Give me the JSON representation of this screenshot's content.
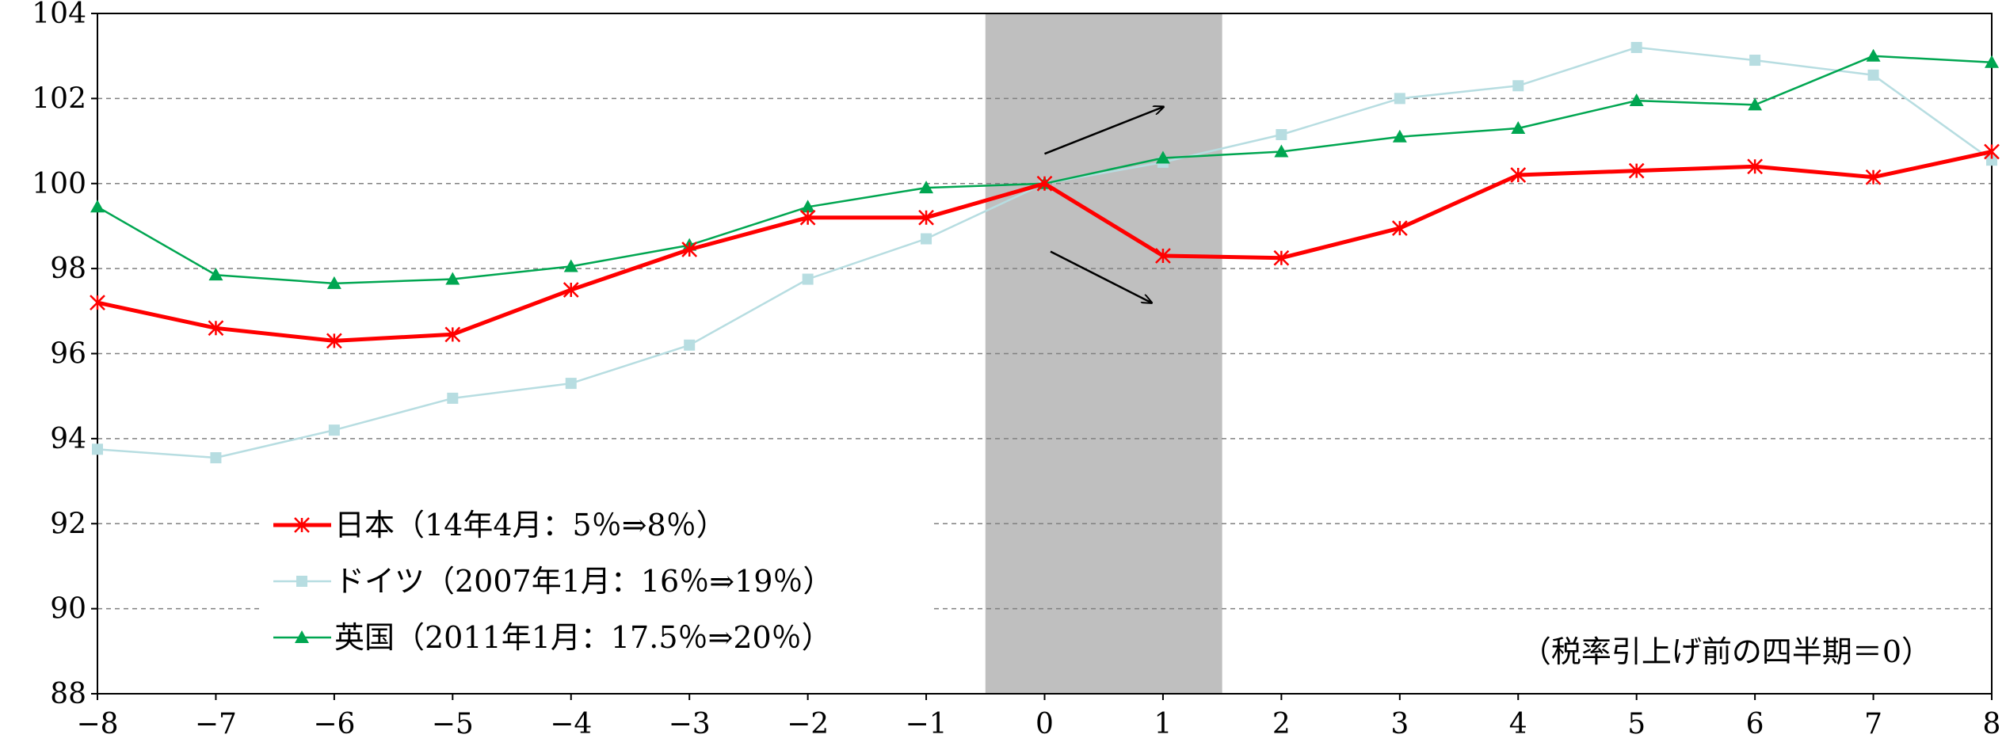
{
  "chart_data": {
    "type": "line",
    "title": "",
    "xlabel": "",
    "ylabel": "",
    "x": [
      -8,
      -7,
      -6,
      -5,
      -4,
      -3,
      -2,
      -1,
      0,
      1,
      2,
      3,
      4,
      5,
      6,
      7,
      8
    ],
    "x_tick_labels": [
      "−8",
      "−7",
      "−6",
      "−5",
      "−4",
      "−3",
      "−2",
      "−1",
      "0",
      "1",
      "2",
      "3",
      "4",
      "5",
      "6",
      "7",
      "8"
    ],
    "xlim": [
      -8,
      8
    ],
    "ylim": [
      88,
      104
    ],
    "y_ticks": [
      88,
      90,
      92,
      94,
      96,
      98,
      100,
      102,
      104
    ],
    "y_tick_labels": [
      "88",
      "90",
      "92",
      "94",
      "96",
      "98",
      "100",
      "102",
      "104"
    ],
    "grid": "horizontal dashed",
    "shaded_region": {
      "from": -0.5,
      "to": 1.5,
      "color": "#bfbfbf"
    },
    "series": [
      {
        "name": "日本（14年4月：5％⇒8％）",
        "color": "#ff0000",
        "marker": "asterisk",
        "values": [
          97.2,
          96.6,
          96.3,
          96.45,
          97.5,
          98.45,
          99.2,
          99.2,
          100.0,
          98.3,
          98.25,
          98.95,
          100.2,
          100.3,
          100.4,
          100.15,
          100.75
        ]
      },
      {
        "name": "ドイツ（2007年1月：16％⇒19％）",
        "color": "#b7dde1",
        "marker": "square",
        "values": [
          93.75,
          93.55,
          94.2,
          94.95,
          95.3,
          96.2,
          97.75,
          98.7,
          100.0,
          100.5,
          101.15,
          102.0,
          102.3,
          103.2,
          102.9,
          102.55,
          100.55
        ]
      },
      {
        "name": "英国（2011年1月：17.5％⇒20％）",
        "color": "#00a651",
        "marker": "triangle",
        "values": [
          99.45,
          97.85,
          97.65,
          97.75,
          98.05,
          98.55,
          99.45,
          99.9,
          100.0,
          100.6,
          100.75,
          101.1,
          101.3,
          101.95,
          101.85,
          103.0,
          102.85
        ]
      }
    ],
    "legend_position": "bottom-left",
    "annotations": [
      {
        "kind": "arrow",
        "direction": "up",
        "from": [
          0.0,
          100.7
        ],
        "to": [
          1.0,
          101.8
        ]
      },
      {
        "kind": "arrow",
        "direction": "down",
        "from": [
          0.05,
          98.4
        ],
        "to": [
          0.9,
          97.2
        ]
      }
    ],
    "note": "（税率引上げ前の四半期＝0）"
  }
}
